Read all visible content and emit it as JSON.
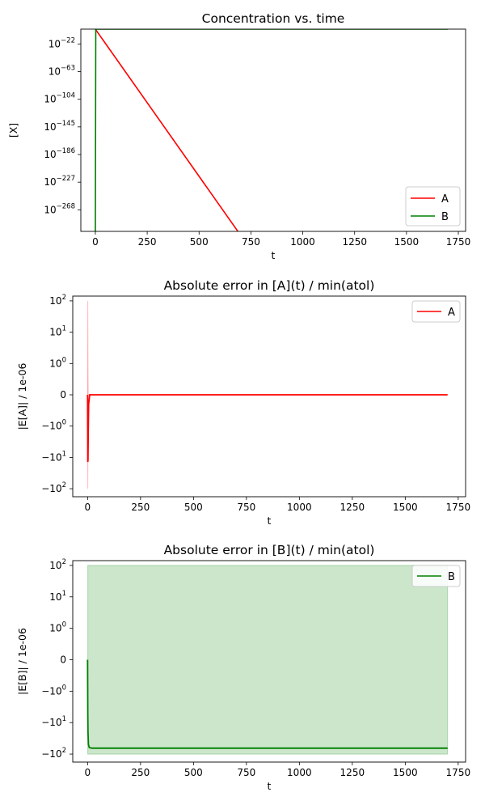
{
  "figure": {
    "background": "#ffffff"
  },
  "chart_data": [
    {
      "type": "line",
      "title": "Concentration vs. time",
      "xlabel": "t",
      "ylabel": "[X]",
      "yscale": "log",
      "xlim": [
        -70,
        1785
      ],
      "ylim_exponent": [
        -300,
        0
      ],
      "xticks": [
        0,
        250,
        500,
        750,
        1000,
        1250,
        1500,
        1750
      ],
      "yticks": [
        {
          "base": "10",
          "exp": "−22",
          "value_exp": -22
        },
        {
          "base": "10",
          "exp": "−63",
          "value_exp": -63
        },
        {
          "base": "10",
          "exp": "−104",
          "value_exp": -104
        },
        {
          "base": "10",
          "exp": "−145",
          "value_exp": -145
        },
        {
          "base": "10",
          "exp": "−186",
          "value_exp": -186
        },
        {
          "base": "10",
          "exp": "−227",
          "value_exp": -227
        },
        {
          "base": "10",
          "exp": "−268",
          "value_exp": -268
        }
      ],
      "legend": {
        "placement": "lower-right"
      },
      "grid": false,
      "series": [
        {
          "name": "A",
          "color": "#ff0000",
          "x": [
            0,
            710,
            1700
          ],
          "y_log10": [
            0,
            -310,
            -310
          ]
        },
        {
          "name": "B",
          "color": "#008000",
          "x": [
            0,
            2,
            1700
          ],
          "y_log10": [
            -310,
            0,
            0
          ]
        }
      ]
    },
    {
      "type": "line",
      "title": "Absolute error in [A](t) / min(atol)",
      "xlabel": "t",
      "ylabel": "|E[A]| /  1e-06",
      "yscale": "symlog",
      "xlim": [
        -70,
        1785
      ],
      "xticks": [
        0,
        250,
        500,
        750,
        1000,
        1250,
        1500,
        1750
      ],
      "yticks": [
        {
          "label": "10",
          "exp": "2",
          "value": 100
        },
        {
          "label": "10",
          "exp": "1",
          "value": 10
        },
        {
          "label": "10",
          "exp": "0",
          "value": 1
        },
        {
          "label": "0",
          "exp": "",
          "value": 0
        },
        {
          "label": "−10",
          "exp": "0",
          "value": -1
        },
        {
          "label": "−10",
          "exp": "1",
          "value": -10
        },
        {
          "label": "−10",
          "exp": "2",
          "value": -100
        }
      ],
      "legend": {
        "placement": "upper-right"
      },
      "grid": false,
      "series": [
        {
          "name": "A",
          "color": "#ff0000",
          "x": [
            0,
            1,
            2,
            3,
            5,
            10,
            1700
          ],
          "y": [
            0,
            -14,
            -12,
            -2,
            -0.3,
            0,
            0
          ],
          "band": {
            "color": "#ff0000",
            "opacity": 0.2,
            "x": [
              0,
              1,
              2,
              3,
              1700
            ],
            "upper": [
              0,
              100,
              1,
              0,
              0
            ],
            "lower": [
              0,
              -100,
              -1,
              0,
              0
            ]
          }
        }
      ]
    },
    {
      "type": "line",
      "title": "Absolute error in [B](t) / min(atol)",
      "xlabel": "t",
      "ylabel": "|E[B]| /  1e-06",
      "yscale": "symlog",
      "xlim": [
        -70,
        1785
      ],
      "xticks": [
        0,
        250,
        500,
        750,
        1000,
        1250,
        1500,
        1750
      ],
      "yticks": [
        {
          "label": "10",
          "exp": "2",
          "value": 100
        },
        {
          "label": "10",
          "exp": "1",
          "value": 10
        },
        {
          "label": "10",
          "exp": "0",
          "value": 1
        },
        {
          "label": "0",
          "exp": "",
          "value": 0
        },
        {
          "label": "−10",
          "exp": "0",
          "value": -1
        },
        {
          "label": "−10",
          "exp": "1",
          "value": -10
        },
        {
          "label": "−10",
          "exp": "2",
          "value": -100
        }
      ],
      "legend": {
        "placement": "upper-right"
      },
      "grid": false,
      "series": [
        {
          "name": "B",
          "color": "#008000",
          "x": [
            0,
            1,
            2,
            4,
            8,
            20,
            1700
          ],
          "y": [
            0,
            -5,
            -20,
            -50,
            -62,
            -65,
            -65
          ],
          "band": {
            "color": "#008000",
            "opacity": 0.2,
            "x": [
              1,
              1700
            ],
            "upper": [
              100,
              100
            ],
            "lower": [
              -100,
              -100
            ]
          }
        }
      ]
    }
  ]
}
